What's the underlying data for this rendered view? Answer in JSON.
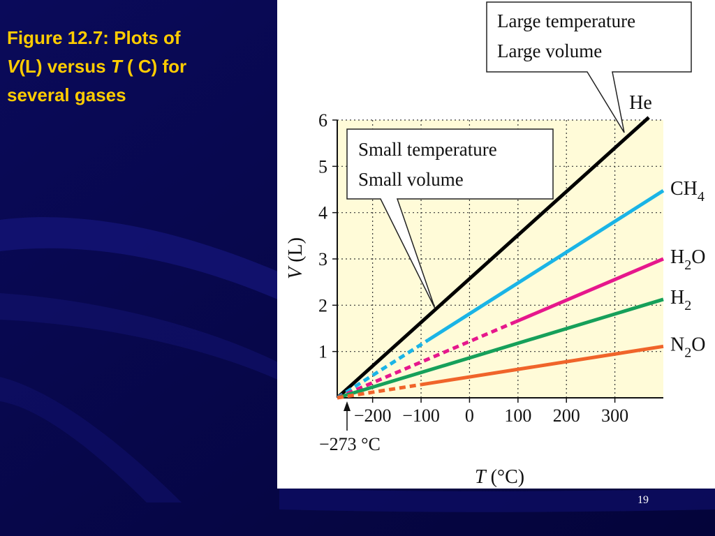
{
  "slide": {
    "caption_line1": "Figure 12.7: Plots of",
    "caption_v": "V",
    "caption_mid": "(L) versus ",
    "caption_t": "T",
    "caption_end": " ( C) for",
    "caption_line3": "several gases",
    "page_number": "19"
  },
  "chart_data": {
    "type": "line",
    "xlabel_var": "T",
    "xlabel_unit": " (°C)",
    "ylabel_var": "V",
    "ylabel_unit": " (L)",
    "xlim": [
      -273,
      400
    ],
    "ylim": [
      0,
      6
    ],
    "x_ticks": [
      -200,
      -100,
      0,
      100,
      200,
      300
    ],
    "x_tick_labels": [
      "−200",
      "−100",
      "0",
      "100",
      "200",
      "300"
    ],
    "y_ticks": [
      1,
      2,
      3,
      4,
      5,
      6
    ],
    "grid": true,
    "background_color": "#fffbd8",
    "absolute_zero_label": "−273 °C",
    "series": [
      {
        "name": "He",
        "label_main": "He",
        "label_sub": "",
        "label_tail": "",
        "color": "#000000",
        "x0": -273,
        "x1": 370,
        "slope": 0.00942,
        "dashed_until": null
      },
      {
        "name": "CH4",
        "label_main": "CH",
        "label_sub": "4",
        "label_tail": "",
        "color": "#1ab4e6",
        "x0": -273,
        "x1": 400,
        "slope": 0.00665,
        "dashed_until": -85
      },
      {
        "name": "H2O",
        "label_main": "H",
        "label_sub": "2",
        "label_tail": "O",
        "color": "#e6178c",
        "x0": -273,
        "x1": 400,
        "slope": 0.00446,
        "dashed_until": 95
      },
      {
        "name": "H2",
        "label_main": "H",
        "label_sub": "2",
        "label_tail": "",
        "color": "#16a05a",
        "x0": -273,
        "x1": 400,
        "slope": 0.00316,
        "dashed_until": null
      },
      {
        "name": "N2O",
        "label_main": "N",
        "label_sub": "2",
        "label_tail": "O",
        "color": "#f0642a",
        "x0": -273,
        "x1": 400,
        "slope": 0.00165,
        "dashed_until": -100
      }
    ],
    "annotations": [
      {
        "id": "large",
        "line1": "Large temperature",
        "line2": "Large volume"
      },
      {
        "id": "small",
        "line1": "Small temperature",
        "line2": "Small volume"
      }
    ]
  },
  "colors": {
    "slide_bg": "#06064a",
    "caption": "#ffcc00",
    "page_number": "#ffffff"
  }
}
